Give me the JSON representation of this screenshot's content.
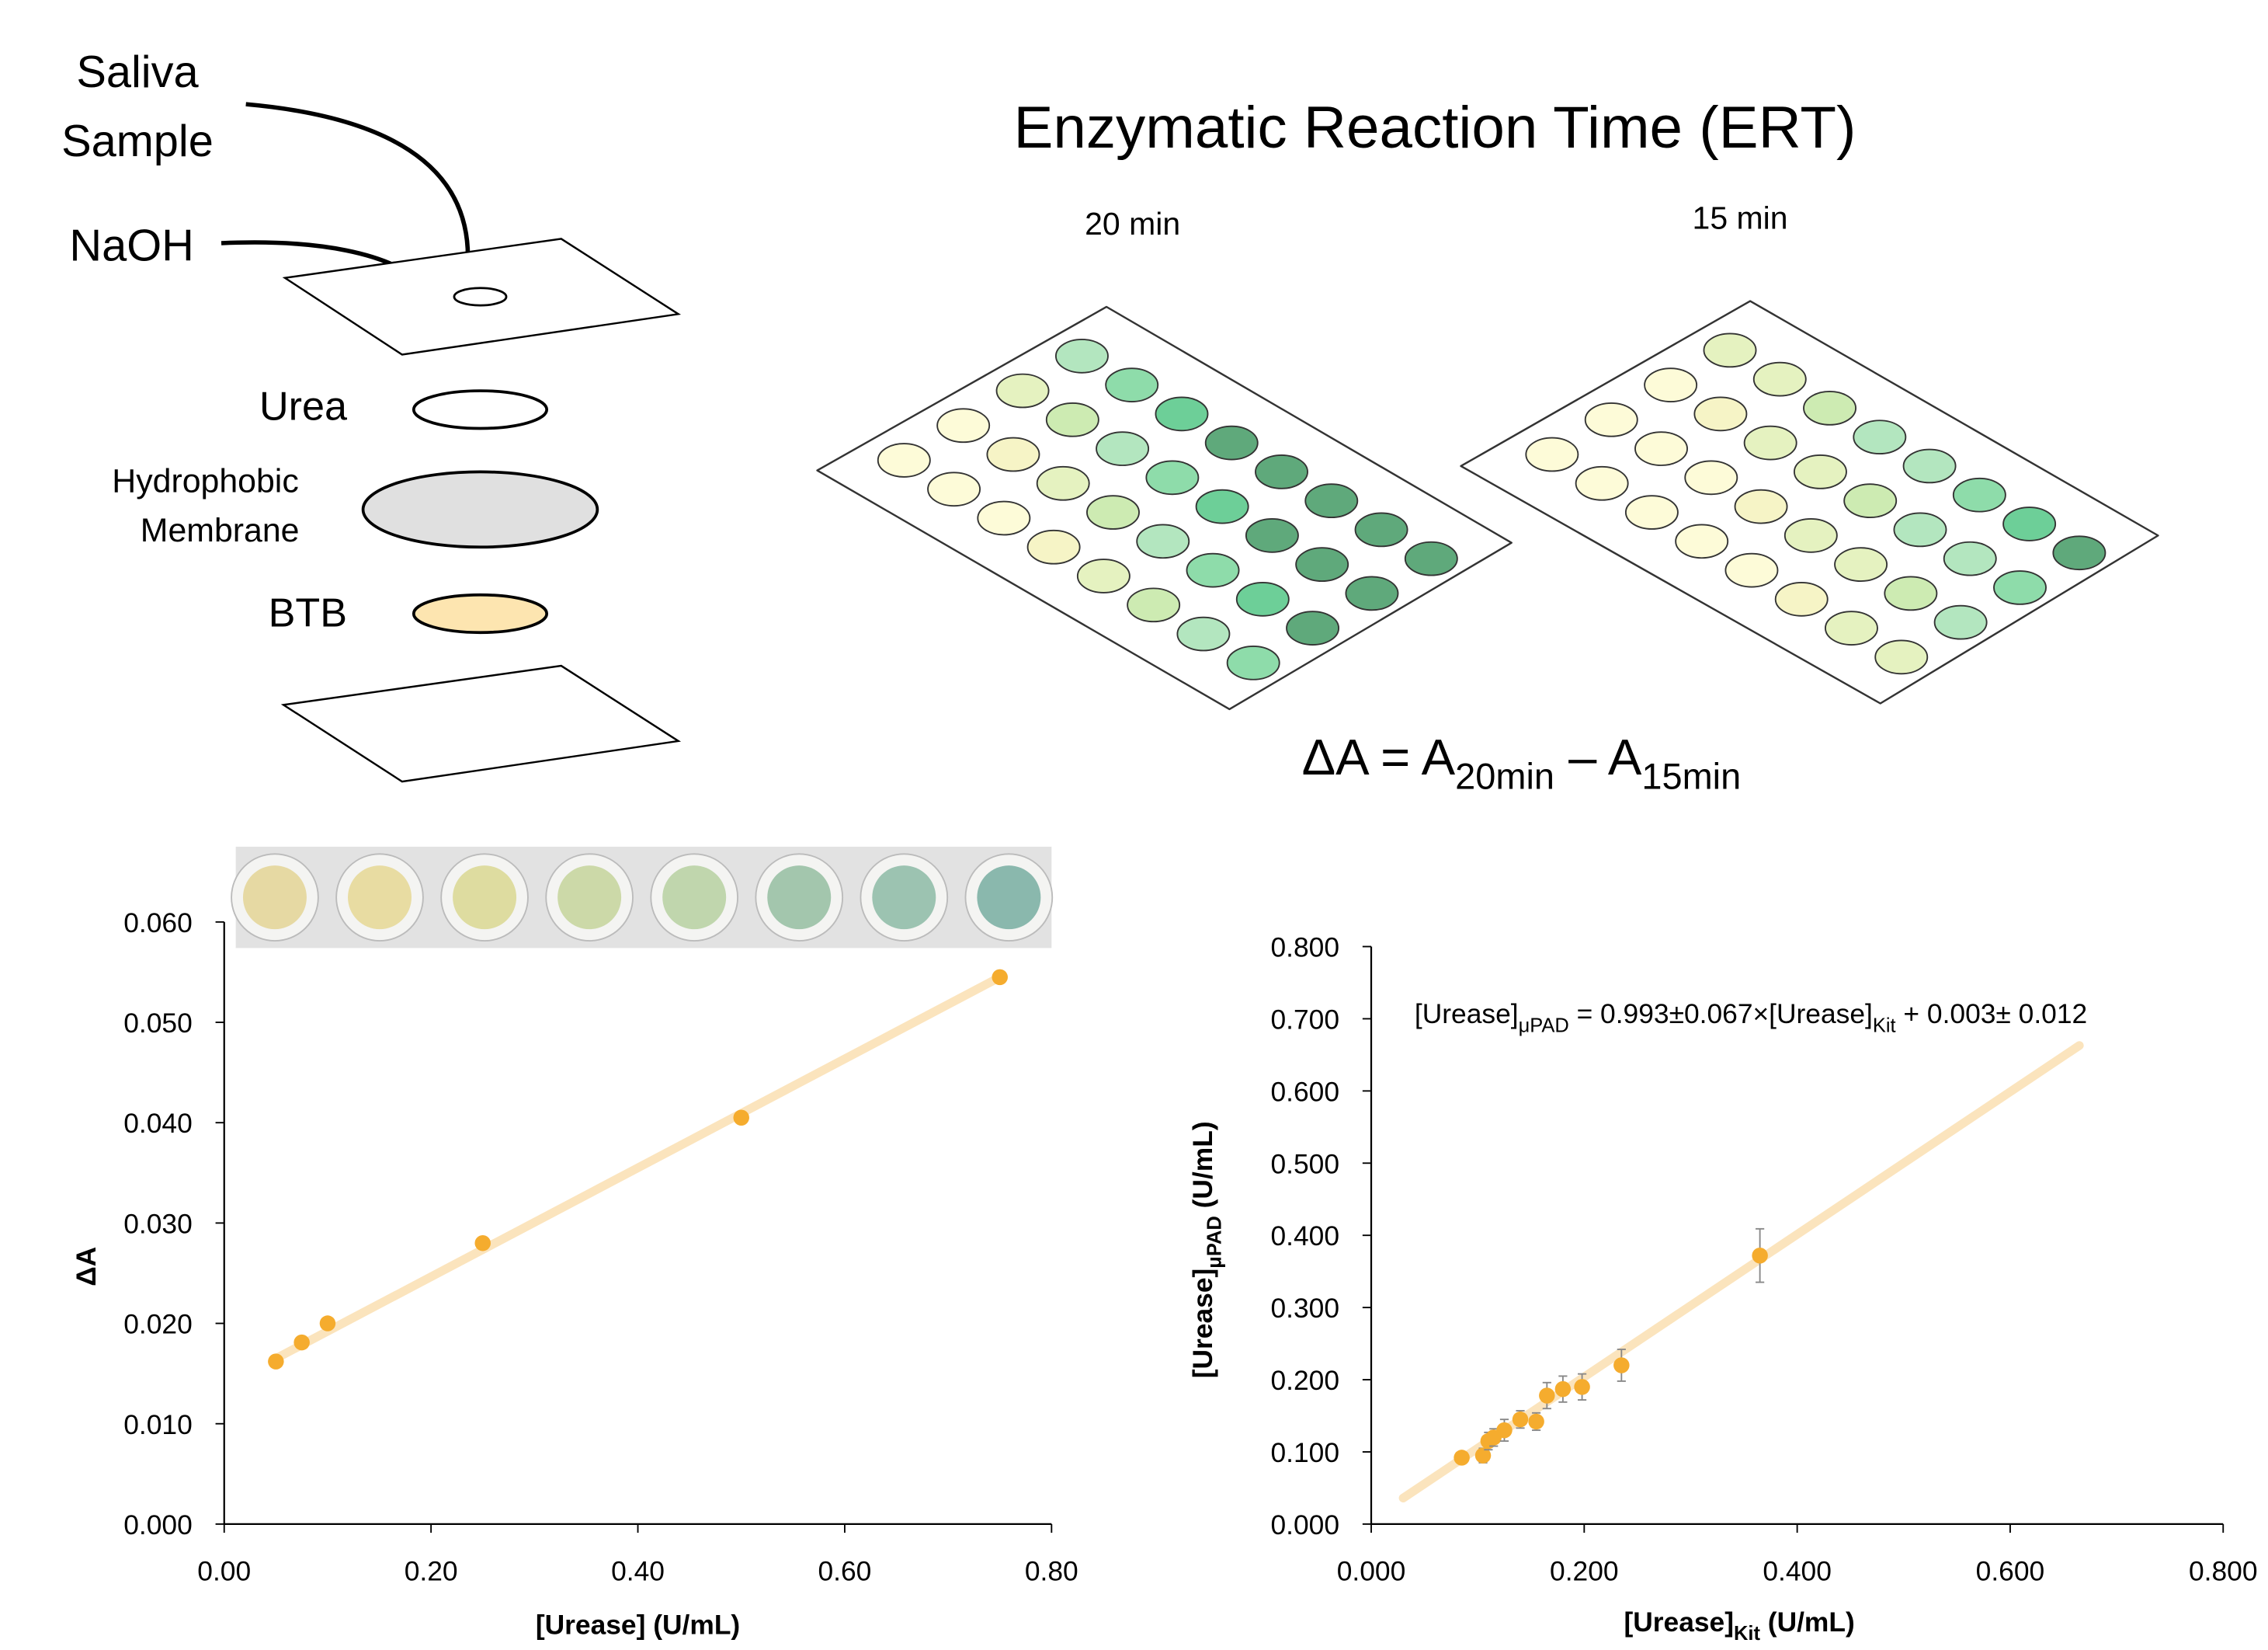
{
  "diagram": {
    "title": "Enzymatic Reaction Time (ERT)",
    "sample_label": [
      "Saliva",
      "Sample"
    ],
    "naoh_label": "NaOH",
    "urea_label": "Urea",
    "membrane_label": [
      "Hydrophobic",
      "Membrane"
    ],
    "btb_label": "BTB",
    "plate_labels": [
      "20 min",
      "15 min"
    ],
    "equation": [
      "ΔA = A",
      "20min",
      " – A",
      "15min"
    ]
  },
  "chart_data": [
    {
      "type": "scatter",
      "xlabel": "[Urease] (U/mL)",
      "ylabel": "ΔA",
      "x": [
        0.05,
        0.075,
        0.1,
        0.25,
        0.5,
        0.75
      ],
      "values": [
        0.0162,
        0.0181,
        0.02,
        0.028,
        0.0405,
        0.0545
      ],
      "color": "#f5ac2e",
      "trendline": {
        "x": [
          0.05,
          0.75
        ],
        "y": [
          0.0165,
          0.0545
        ],
        "color": "#fbe4bd"
      },
      "xlim": [
        0,
        0.8
      ],
      "xticks": [
        {
          "value": 0,
          "label": "0.00"
        },
        {
          "value": 0.2,
          "label": "0.20"
        },
        {
          "value": 0.4,
          "label": "0.40"
        },
        {
          "value": 0.6,
          "label": "0.60"
        },
        {
          "value": 0.8,
          "label": "0.80"
        }
      ],
      "ylim": [
        0,
        0.06
      ],
      "yticks": [
        {
          "value": 0,
          "label": "0.000"
        },
        {
          "value": 0.01,
          "label": "0.010"
        },
        {
          "value": 0.02,
          "label": "0.020"
        },
        {
          "value": 0.03,
          "label": "0.030"
        },
        {
          "value": 0.04,
          "label": "0.040"
        },
        {
          "value": 0.05,
          "label": "0.050"
        },
        {
          "value": 0.06,
          "label": "0.060"
        }
      ]
    },
    {
      "type": "scatter",
      "xlabel": [
        "[Urease]",
        "Kit",
        " (U/mL)"
      ],
      "ylabel": [
        "[Urease]",
        "μPAD",
        " (U/mL)"
      ],
      "annotation": [
        "[Urease]",
        "μPAD",
        " = 0.993±0.067×[Urease]",
        "Kit",
        " + 0.003± 0.012"
      ],
      "x": [
        0.085,
        0.105,
        0.11,
        0.115,
        0.125,
        0.14,
        0.155,
        0.165,
        0.18,
        0.198,
        0.235,
        0.365
      ],
      "values": [
        0.092,
        0.095,
        0.115,
        0.12,
        0.13,
        0.145,
        0.142,
        0.178,
        0.187,
        0.19,
        0.22,
        0.372
      ],
      "errors": [
        0.006,
        0.01,
        0.012,
        0.012,
        0.015,
        0.012,
        0.012,
        0.018,
        0.018,
        0.018,
        0.022,
        0.037
      ],
      "color": "#f5ac2e",
      "trendline": {
        "x": [
          0.03,
          0.665
        ],
        "y": [
          0.036,
          0.663
        ],
        "color": "#fbe4bd"
      },
      "xlim": [
        0,
        0.8
      ],
      "xticks": [
        {
          "value": 0,
          "label": "0.000"
        },
        {
          "value": 0.2,
          "label": "0.200"
        },
        {
          "value": 0.4,
          "label": "0.400"
        },
        {
          "value": 0.6,
          "label": "0.600"
        },
        {
          "value": 0.8,
          "label": "0.800"
        }
      ],
      "ylim": [
        0,
        0.8
      ],
      "yticks": [
        {
          "value": 0,
          "label": "0.000"
        },
        {
          "value": 0.1,
          "label": "0.100"
        },
        {
          "value": 0.2,
          "label": "0.200"
        },
        {
          "value": 0.3,
          "label": "0.300"
        },
        {
          "value": 0.4,
          "label": "0.400"
        },
        {
          "value": 0.5,
          "label": "0.500"
        },
        {
          "value": 0.6,
          "label": "0.600"
        },
        {
          "value": 0.7,
          "label": "0.700"
        },
        {
          "value": 0.8,
          "label": "0.800"
        }
      ]
    }
  ]
}
